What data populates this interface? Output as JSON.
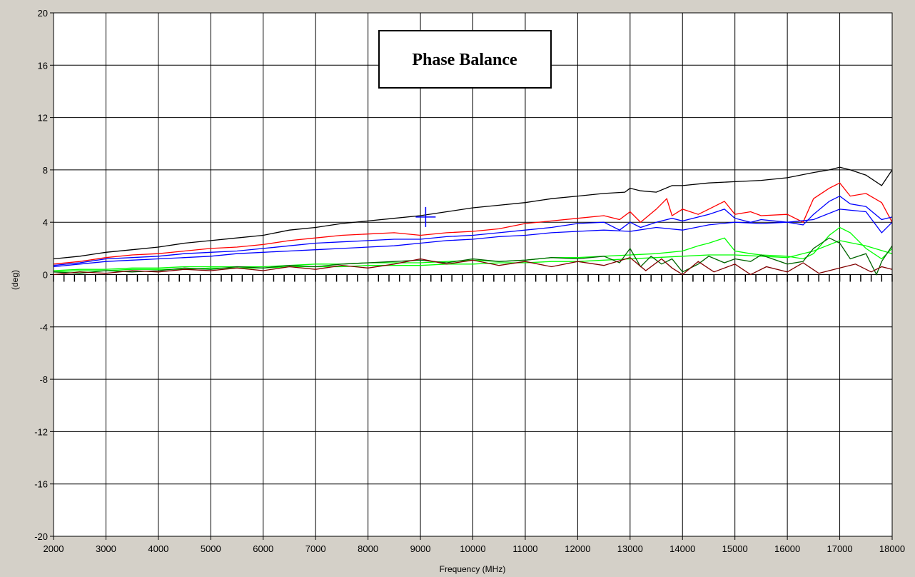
{
  "colors": {
    "background": "#d4d0c8",
    "plot_background": "#ffffff",
    "grid": "#000000"
  },
  "chart_data": {
    "type": "line",
    "title": "Phase Balance",
    "xlabel": "Frequency (MHz)",
    "ylabel": "(deg)",
    "xlim": [
      2000,
      18000
    ],
    "ylim": [
      -20,
      20
    ],
    "xticks": [
      2000,
      3000,
      4000,
      5000,
      6000,
      7000,
      8000,
      9000,
      10000,
      11000,
      12000,
      13000,
      14000,
      15000,
      16000,
      17000,
      18000
    ],
    "yticks": [
      20,
      16,
      12,
      8,
      4,
      0,
      -4,
      -8,
      -12,
      -16,
      -20
    ],
    "grid": true,
    "legend": "none",
    "marker": {
      "x": 9100,
      "y": 4.4,
      "color": "#0000ff"
    },
    "series": [
      {
        "color": "#000000",
        "x": [
          2000,
          2500,
          3000,
          3500,
          4000,
          4500,
          5000,
          5500,
          6000,
          6500,
          7000,
          7500,
          8000,
          8500,
          9000,
          9500,
          10000,
          10500,
          11000,
          11500,
          12000,
          12500,
          12900,
          13000,
          13200,
          13500,
          13800,
          14000,
          14500,
          15000,
          15500,
          16000,
          16500,
          16800,
          17000,
          17200,
          17500,
          17800,
          18000
        ],
        "y": [
          1.2,
          1.4,
          1.7,
          1.9,
          2.1,
          2.4,
          2.6,
          2.8,
          3.0,
          3.4,
          3.6,
          3.9,
          4.1,
          4.3,
          4.5,
          4.8,
          5.1,
          5.3,
          5.5,
          5.8,
          6.0,
          6.2,
          6.3,
          6.6,
          6.4,
          6.3,
          6.8,
          6.8,
          7.0,
          7.1,
          7.2,
          7.4,
          7.8,
          8.0,
          8.2,
          8.0,
          7.6,
          6.8,
          8.0
        ]
      },
      {
        "color": "#ff0000",
        "x": [
          2000,
          2500,
          3000,
          3500,
          4000,
          4500,
          5000,
          5500,
          6000,
          6500,
          7000,
          7500,
          8000,
          8500,
          9000,
          9500,
          10000,
          10500,
          11000,
          11500,
          12000,
          12500,
          12800,
          13000,
          13200,
          13500,
          13700,
          13800,
          14000,
          14300,
          14500,
          14800,
          15000,
          15300,
          15500,
          16000,
          16300,
          16500,
          16800,
          17000,
          17200,
          17500,
          17800,
          18000
        ],
        "y": [
          0.8,
          1.0,
          1.3,
          1.5,
          1.6,
          1.8,
          2.0,
          2.1,
          2.3,
          2.6,
          2.8,
          3.0,
          3.1,
          3.2,
          3.0,
          3.2,
          3.3,
          3.5,
          3.9,
          4.1,
          4.3,
          4.5,
          4.2,
          4.8,
          4.0,
          5.0,
          5.8,
          4.5,
          5.0,
          4.6,
          5.0,
          5.6,
          4.6,
          4.8,
          4.5,
          4.6,
          4.0,
          5.8,
          6.6,
          7.0,
          6.0,
          6.2,
          5.5,
          4.0
        ]
      },
      {
        "color": "#0000ff",
        "x": [
          2000,
          2500,
          3000,
          3500,
          4000,
          4500,
          5000,
          5500,
          6000,
          6500,
          7000,
          7500,
          8000,
          8500,
          9000,
          9500,
          10000,
          10500,
          11000,
          11500,
          12000,
          12500,
          12800,
          13000,
          13200,
          13500,
          13800,
          14000,
          14300,
          14500,
          14800,
          15000,
          15300,
          15500,
          16000,
          16300,
          16500,
          16800,
          17000,
          17200,
          17500,
          17800,
          18000
        ],
        "y": [
          0.7,
          0.9,
          1.2,
          1.3,
          1.4,
          1.6,
          1.7,
          1.8,
          2.0,
          2.2,
          2.4,
          2.5,
          2.6,
          2.7,
          2.7,
          2.9,
          3.0,
          3.2,
          3.4,
          3.6,
          3.9,
          4.0,
          3.4,
          4.0,
          3.6,
          4.0,
          4.3,
          4.1,
          4.4,
          4.6,
          5.0,
          4.3,
          4.0,
          4.2,
          4.0,
          3.8,
          4.6,
          5.6,
          6.0,
          5.4,
          5.2,
          4.2,
          4.4
        ]
      },
      {
        "color": "#0000ff",
        "x": [
          2000,
          2500,
          3000,
          3500,
          4000,
          4500,
          5000,
          5500,
          6000,
          6500,
          7000,
          7500,
          8000,
          8500,
          9000,
          9500,
          10000,
          10500,
          11000,
          11500,
          12000,
          12500,
          13000,
          13500,
          14000,
          14500,
          15000,
          15500,
          16000,
          16500,
          17000,
          17500,
          17800,
          18000
        ],
        "y": [
          0.6,
          0.8,
          1.0,
          1.1,
          1.2,
          1.3,
          1.4,
          1.6,
          1.7,
          1.8,
          1.9,
          2.0,
          2.1,
          2.2,
          2.4,
          2.6,
          2.7,
          2.9,
          3.0,
          3.2,
          3.3,
          3.4,
          3.3,
          3.6,
          3.4,
          3.8,
          4.0,
          3.9,
          4.0,
          4.2,
          5.0,
          4.8,
          3.2,
          4.0
        ]
      },
      {
        "color": "#00ff00",
        "x": [
          2000,
          2500,
          3000,
          3500,
          4000,
          4500,
          5000,
          5500,
          6000,
          6500,
          7000,
          7500,
          8000,
          8500,
          9000,
          9500,
          10000,
          10500,
          11000,
          11500,
          12000,
          12500,
          13000,
          13500,
          14000,
          14300,
          14500,
          14800,
          15000,
          15300,
          15500,
          16000,
          16300,
          16500,
          16800,
          17000,
          17200,
          17500,
          17800,
          18000
        ],
        "y": [
          0.3,
          0.4,
          0.4,
          0.5,
          0.5,
          0.6,
          0.6,
          0.6,
          0.6,
          0.7,
          0.8,
          0.8,
          0.9,
          0.9,
          0.9,
          1.0,
          1.1,
          1.0,
          1.1,
          1.3,
          1.3,
          1.4,
          1.5,
          1.6,
          1.8,
          2.2,
          2.4,
          2.8,
          1.8,
          1.6,
          1.5,
          1.4,
          1.2,
          1.6,
          3.0,
          3.6,
          3.2,
          2.0,
          1.2,
          2.0
        ]
      },
      {
        "color": "#00ff00",
        "x": [
          2000,
          2500,
          3000,
          3500,
          4000,
          4500,
          5000,
          5500,
          6000,
          6500,
          7000,
          7500,
          8000,
          8500,
          9000,
          9500,
          10000,
          10500,
          11000,
          11500,
          12000,
          12500,
          13000,
          13500,
          14000,
          14500,
          15000,
          15500,
          16000,
          16500,
          17000,
          17500,
          18000
        ],
        "y": [
          0.2,
          0.3,
          0.3,
          0.4,
          0.4,
          0.4,
          0.5,
          0.5,
          0.5,
          0.6,
          0.6,
          0.6,
          0.7,
          0.7,
          0.7,
          0.8,
          0.8,
          0.9,
          0.9,
          1.0,
          1.0,
          1.1,
          1.2,
          1.3,
          1.4,
          1.5,
          1.5,
          1.4,
          1.3,
          1.8,
          2.6,
          2.2,
          1.6
        ]
      },
      {
        "color": "#006400",
        "x": [
          2000,
          2500,
          3000,
          3500,
          4000,
          4500,
          5000,
          5500,
          6000,
          6500,
          7000,
          7500,
          8000,
          8500,
          9000,
          9500,
          10000,
          10500,
          11000,
          11500,
          12000,
          12500,
          12800,
          13000,
          13200,
          13400,
          13600,
          13800,
          14000,
          14300,
          14500,
          14800,
          15000,
          15300,
          15500,
          16000,
          16300,
          16500,
          16800,
          17000,
          17200,
          17500,
          17700,
          17800,
          18000
        ],
        "y": [
          0.2,
          0.1,
          0.3,
          0.2,
          0.3,
          0.5,
          0.4,
          0.6,
          0.5,
          0.7,
          0.6,
          0.8,
          0.9,
          1.0,
          1.1,
          0.9,
          1.2,
          1.0,
          1.1,
          1.3,
          1.2,
          1.4,
          0.9,
          2.0,
          0.6,
          1.4,
          0.8,
          1.2,
          0.2,
          0.8,
          1.4,
          0.9,
          1.2,
          1.0,
          1.5,
          0.8,
          1.0,
          2.0,
          2.8,
          2.4,
          1.2,
          1.6,
          0.0,
          1.0,
          2.2
        ]
      },
      {
        "color": "#800000",
        "x": [
          2000,
          2500,
          3000,
          3500,
          4000,
          4500,
          5000,
          5500,
          6000,
          6500,
          7000,
          7500,
          8000,
          8500,
          9000,
          9500,
          10000,
          10500,
          11000,
          11500,
          12000,
          12500,
          13000,
          13300,
          13600,
          13800,
          14000,
          14300,
          14600,
          15000,
          15300,
          15600,
          16000,
          16300,
          16600,
          17000,
          17300,
          17600,
          17800,
          18000
        ],
        "y": [
          0.0,
          0.2,
          0.1,
          0.3,
          0.2,
          0.4,
          0.3,
          0.5,
          0.3,
          0.6,
          0.4,
          0.7,
          0.5,
          0.8,
          1.2,
          0.8,
          1.1,
          0.7,
          1.0,
          0.6,
          1.0,
          0.7,
          1.3,
          0.3,
          1.2,
          0.5,
          0.0,
          1.0,
          0.2,
          0.8,
          0.0,
          0.6,
          0.2,
          0.9,
          0.1,
          0.5,
          0.8,
          0.2,
          0.6,
          0.4
        ]
      }
    ]
  }
}
